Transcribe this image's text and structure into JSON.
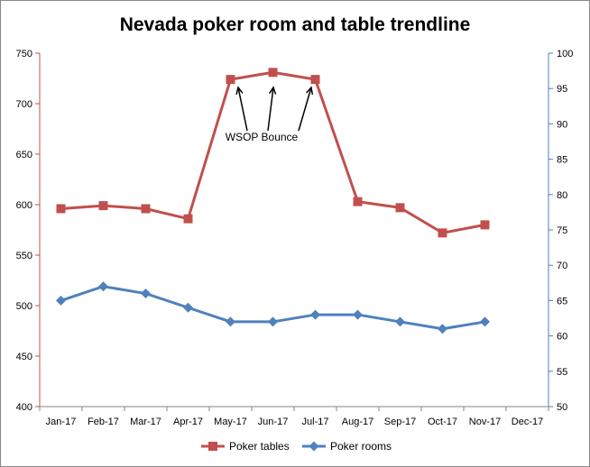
{
  "chart_data": {
    "type": "line",
    "title": "Nevada poker room and table trendline",
    "categories": [
      "Jan-17",
      "Feb-17",
      "Mar-17",
      "Apr-17",
      "May-17",
      "Jun-17",
      "Jul-17",
      "Aug-17",
      "Sep-17",
      "Oct-17",
      "Nov-17",
      "Dec-17"
    ],
    "y_left": {
      "min": 400,
      "max": 750,
      "step": 50,
      "ticks": [
        "400",
        "450",
        "500",
        "550",
        "600",
        "650",
        "700",
        "750"
      ],
      "color": "#c0504d"
    },
    "y_right": {
      "min": 50,
      "max": 100,
      "step": 5,
      "ticks": [
        "50",
        "55",
        "60",
        "65",
        "70",
        "75",
        "80",
        "85",
        "90",
        "95",
        "100"
      ],
      "color": "#4f81bd"
    },
    "series": [
      {
        "name": "Poker tables",
        "axis": "left",
        "color": "#c0504d",
        "marker": "square",
        "values": [
          596,
          599,
          596,
          586,
          724,
          731,
          724,
          603,
          597,
          572,
          580,
          null
        ]
      },
      {
        "name": "Poker rooms",
        "axis": "right",
        "color": "#4f81bd",
        "marker": "diamond",
        "values": [
          65,
          67,
          66,
          64,
          62,
          62,
          63,
          63,
          62,
          61,
          62,
          null
        ]
      }
    ],
    "annotation": {
      "text": "WSOP Bounce",
      "targets": [
        "May-17",
        "Jun-17",
        "Jul-17"
      ]
    },
    "legend": "bottom",
    "grid": false
  }
}
